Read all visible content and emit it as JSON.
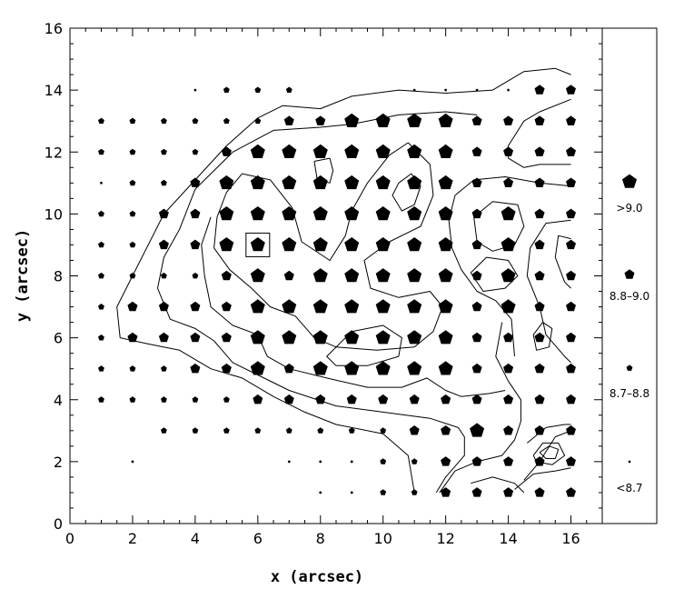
{
  "chart_data": {
    "type": "scatter",
    "xlabel": "x (arcsec)",
    "ylabel": "y (arcsec)",
    "xlim": [
      0,
      17
    ],
    "ylim": [
      0,
      16
    ],
    "xticks": [
      0,
      2,
      4,
      6,
      8,
      10,
      12,
      14,
      16
    ],
    "yticks": [
      0,
      2,
      4,
      6,
      8,
      10,
      12,
      14,
      16
    ],
    "grid": false,
    "legend": {
      "placement": "right panel",
      "entries": [
        {
          "label": ">9.0",
          "level": 3
        },
        {
          "label": "8.8–9.0",
          "level": 2
        },
        {
          "label": "8.7–8.8",
          "level": 1
        },
        {
          "label": "<8.7",
          "level": 0
        }
      ]
    },
    "highlight_box": {
      "x": 6,
      "y": 9
    },
    "rows": [
      {
        "y": 14,
        "x": [
          4,
          5,
          6,
          7,
          11,
          12,
          13,
          14,
          15,
          16
        ],
        "levels": [
          0,
          1,
          1,
          1,
          0,
          0,
          0,
          0,
          2,
          2
        ]
      },
      {
        "y": 13,
        "x": [
          1,
          2,
          3,
          4,
          5,
          6,
          7,
          8,
          9,
          10,
          11,
          12,
          13,
          14,
          15,
          16
        ],
        "levels": [
          1,
          1,
          1,
          1,
          1,
          1,
          2,
          2,
          3,
          3,
          3,
          3,
          2,
          2,
          2,
          2
        ]
      },
      {
        "y": 12,
        "x": [
          1,
          2,
          3,
          4,
          5,
          6,
          7,
          8,
          9,
          10,
          11,
          12,
          13,
          14,
          15,
          16
        ],
        "levels": [
          1,
          1,
          1,
          1,
          2,
          3,
          3,
          3,
          3,
          3,
          3,
          3,
          2,
          2,
          2,
          2
        ]
      },
      {
        "y": 11,
        "x": [
          1,
          2,
          3,
          4,
          5,
          6,
          7,
          8,
          9,
          10,
          11,
          12,
          13,
          14,
          15,
          16
        ],
        "levels": [
          0,
          1,
          1,
          2,
          3,
          3,
          3,
          3,
          3,
          3,
          3,
          3,
          2,
          2,
          2,
          2
        ]
      },
      {
        "y": 10,
        "x": [
          1,
          2,
          3,
          4,
          5,
          6,
          7,
          8,
          9,
          10,
          11,
          12,
          13,
          14,
          15,
          16
        ],
        "levels": [
          1,
          1,
          2,
          2,
          3,
          3,
          3,
          3,
          3,
          3,
          3,
          3,
          2,
          3,
          2,
          2
        ]
      },
      {
        "y": 9,
        "x": [
          1,
          2,
          3,
          4,
          5,
          6,
          7,
          8,
          9,
          10,
          11,
          12,
          13,
          14,
          15,
          16
        ],
        "levels": [
          1,
          1,
          2,
          2,
          3,
          3,
          3,
          3,
          3,
          3,
          3,
          3,
          2,
          3,
          2,
          2
        ]
      },
      {
        "y": 8,
        "x": [
          1,
          2,
          3,
          4,
          5,
          6,
          7,
          8,
          9,
          10,
          11,
          12,
          13,
          14,
          15,
          16
        ],
        "levels": [
          1,
          1,
          1,
          1,
          2,
          3,
          2,
          3,
          3,
          3,
          3,
          3,
          2,
          3,
          2,
          2
        ]
      },
      {
        "y": 7,
        "x": [
          1,
          2,
          3,
          4,
          5,
          6,
          7,
          8,
          9,
          10,
          11,
          12,
          13,
          14,
          15,
          16
        ],
        "levels": [
          1,
          2,
          2,
          2,
          2,
          3,
          3,
          3,
          3,
          3,
          3,
          3,
          2,
          3,
          2,
          2
        ]
      },
      {
        "y": 6,
        "x": [
          1,
          2,
          3,
          4,
          5,
          6,
          7,
          8,
          9,
          10,
          11,
          12,
          13,
          14,
          15,
          16
        ],
        "levels": [
          1,
          2,
          2,
          2,
          2,
          3,
          3,
          3,
          3,
          3,
          3,
          3,
          2,
          2,
          2,
          2
        ]
      },
      {
        "y": 5,
        "x": [
          1,
          2,
          3,
          4,
          5,
          6,
          7,
          8,
          9,
          10,
          11,
          12,
          13,
          14,
          15,
          16
        ],
        "levels": [
          1,
          1,
          1,
          2,
          2,
          3,
          2,
          3,
          3,
          3,
          3,
          3,
          2,
          2,
          2,
          2
        ]
      },
      {
        "y": 4,
        "x": [
          1,
          2,
          3,
          4,
          5,
          6,
          7,
          8,
          9,
          10,
          11,
          12,
          13,
          14,
          15,
          16
        ],
        "levels": [
          1,
          1,
          1,
          1,
          1,
          2,
          2,
          2,
          2,
          2,
          2,
          2,
          2,
          2,
          2,
          2
        ]
      },
      {
        "y": 3,
        "x": [
          3,
          4,
          5,
          6,
          7,
          8,
          9,
          10,
          11,
          12,
          13,
          14,
          15,
          16
        ],
        "levels": [
          1,
          1,
          1,
          1,
          1,
          1,
          1,
          1,
          2,
          2,
          3,
          2,
          2,
          2
        ]
      },
      {
        "y": 2,
        "x": [
          2,
          7,
          8,
          9,
          10,
          11,
          12,
          13,
          14,
          15,
          16
        ],
        "levels": [
          0,
          0,
          0,
          0,
          1,
          1,
          2,
          2,
          2,
          2,
          2
        ]
      },
      {
        "y": 1,
        "x": [
          8,
          9,
          10,
          11,
          12,
          13,
          14,
          15,
          16
        ],
        "levels": [
          0,
          0,
          1,
          1,
          2,
          2,
          2,
          2,
          2
        ]
      }
    ],
    "contours": [
      [
        [
          16,
          14.5
        ],
        [
          15.5,
          14.7
        ],
        [
          14.5,
          14.6
        ],
        [
          13.5,
          14
        ],
        [
          12,
          13.9
        ],
        [
          10.5,
          14
        ],
        [
          9,
          13.8
        ],
        [
          8,
          13.4
        ],
        [
          6.8,
          13.5
        ],
        [
          6,
          13.1
        ],
        [
          5,
          12.2
        ],
        [
          4,
          11.1
        ],
        [
          3,
          10
        ],
        [
          2,
          8
        ],
        [
          1.5,
          7
        ],
        [
          1.6,
          6
        ],
        [
          2.5,
          5.8
        ],
        [
          3.5,
          5.6
        ],
        [
          4.5,
          5
        ],
        [
          5.5,
          4.7
        ],
        [
          6.5,
          4.1
        ],
        [
          7.5,
          3.6
        ],
        [
          8.5,
          3.2
        ],
        [
          10,
          2.9
        ],
        [
          10.8,
          2.2
        ],
        [
          11,
          1
        ]
      ],
      [
        [
          16,
          13.7
        ],
        [
          15,
          13.3
        ],
        [
          14.5,
          13
        ],
        [
          14,
          12.2
        ],
        [
          14,
          11.8
        ],
        [
          14.5,
          11.5
        ],
        [
          15,
          11.6
        ],
        [
          16,
          11.6
        ]
      ],
      [
        [
          13,
          13.2
        ],
        [
          12,
          13.3
        ],
        [
          10.5,
          13.2
        ],
        [
          9,
          12.9
        ],
        [
          8,
          12.8
        ],
        [
          6.5,
          12.7
        ],
        [
          5.2,
          12
        ],
        [
          4,
          10.8
        ],
        [
          3.5,
          9.5
        ],
        [
          3,
          8.6
        ],
        [
          2.8,
          7.6
        ],
        [
          3.2,
          6.6
        ],
        [
          4,
          6.3
        ],
        [
          4.6,
          5.9
        ],
        [
          5.2,
          5.2
        ],
        [
          6,
          4.8
        ],
        [
          7,
          4.3
        ],
        [
          8.5,
          3.8
        ],
        [
          10,
          3.6
        ],
        [
          11.5,
          3.4
        ],
        [
          12.4,
          3.1
        ],
        [
          12.6,
          2.8
        ],
        [
          12.6,
          2.2
        ],
        [
          12,
          1.5
        ],
        [
          11.7,
          1
        ]
      ],
      [
        [
          16,
          10.9
        ],
        [
          15,
          11
        ],
        [
          13.9,
          11.2
        ],
        [
          12.9,
          11.1
        ],
        [
          12.3,
          10.6
        ],
        [
          12.1,
          9.8
        ],
        [
          12.2,
          8.9
        ],
        [
          12.5,
          8.2
        ],
        [
          13,
          7.5
        ],
        [
          13.6,
          7.2
        ],
        [
          14.1,
          6.6
        ],
        [
          14.2,
          5.4
        ]
      ],
      [
        [
          5.5,
          11.3
        ],
        [
          6.4,
          11.1
        ],
        [
          7.1,
          10.2
        ],
        [
          7.4,
          9.1
        ],
        [
          8.3,
          8.5
        ],
        [
          8.8,
          9.3
        ],
        [
          9,
          10.1
        ],
        [
          9.5,
          11
        ],
        [
          10.2,
          11.9
        ],
        [
          10.8,
          12.3
        ],
        [
          11.5,
          11.6
        ],
        [
          11.6,
          10.6
        ],
        [
          11.2,
          9.6
        ],
        [
          10.2,
          9.1
        ],
        [
          9.4,
          8.5
        ],
        [
          9.6,
          7.6
        ],
        [
          10.5,
          7.3
        ],
        [
          11.5,
          7.5
        ],
        [
          11.9,
          7
        ],
        [
          11.6,
          6.2
        ],
        [
          11,
          5.7
        ],
        [
          9.8,
          5.6
        ],
        [
          8.5,
          5.7
        ],
        [
          7.8,
          6
        ],
        [
          7.2,
          6.7
        ],
        [
          6.4,
          7
        ],
        [
          5.8,
          7.6
        ],
        [
          5.1,
          8.2
        ],
        [
          4.6,
          8.9
        ],
        [
          4.7,
          9.9
        ],
        [
          5,
          10.7
        ],
        [
          5.5,
          11.3
        ]
      ],
      [
        [
          7.8,
          11.7
        ],
        [
          8.3,
          11.8
        ],
        [
          8.4,
          11.4
        ],
        [
          8.3,
          11
        ],
        [
          7.9,
          11.1
        ],
        [
          7.8,
          11.7
        ]
      ],
      [
        [
          10.5,
          11
        ],
        [
          10.9,
          11.3
        ],
        [
          11.2,
          10.9
        ],
        [
          11,
          10.3
        ],
        [
          10.6,
          10.1
        ],
        [
          10.3,
          10.6
        ],
        [
          10.5,
          11
        ]
      ],
      [
        [
          12.9,
          9.9
        ],
        [
          13.5,
          10.4
        ],
        [
          14.3,
          10.3
        ],
        [
          14.5,
          9.6
        ],
        [
          14.2,
          9
        ],
        [
          13.5,
          8.8
        ],
        [
          13,
          9.1
        ],
        [
          12.9,
          9.9
        ]
      ],
      [
        [
          16,
          9.8
        ],
        [
          15.2,
          9.7
        ],
        [
          14.7,
          8.9
        ],
        [
          14.6,
          8
        ],
        [
          15,
          7
        ],
        [
          15.2,
          6.1
        ],
        [
          15.8,
          5.4
        ],
        [
          16,
          5.2
        ]
      ],
      [
        [
          16,
          9.2
        ],
        [
          15.6,
          9.3
        ],
        [
          15.5,
          8.6
        ],
        [
          15.8,
          7.8
        ],
        [
          16,
          7.6
        ]
      ],
      [
        [
          12.8,
          8.1
        ],
        [
          13.3,
          8.6
        ],
        [
          14,
          8.5
        ],
        [
          14.3,
          8
        ],
        [
          13.9,
          7.6
        ],
        [
          13.2,
          7.5
        ],
        [
          12.8,
          8.1
        ]
      ],
      [
        [
          4.5,
          9.9
        ],
        [
          4.2,
          9
        ],
        [
          4.3,
          8
        ],
        [
          4.5,
          7
        ],
        [
          5.2,
          6.4
        ],
        [
          6,
          6.1
        ],
        [
          6.3,
          5.4
        ],
        [
          7,
          5
        ],
        [
          8.2,
          4.7
        ],
        [
          9.5,
          4.4
        ],
        [
          10.6,
          4.4
        ],
        [
          11.4,
          4.7
        ],
        [
          12,
          4.3
        ],
        [
          12.5,
          4.1
        ],
        [
          13.4,
          4.2
        ],
        [
          13.9,
          4.3
        ]
      ],
      [
        [
          9,
          6.2
        ],
        [
          10,
          6.4
        ],
        [
          10.6,
          6
        ],
        [
          10.5,
          5.4
        ],
        [
          9.5,
          5.1
        ],
        [
          8.5,
          5.1
        ],
        [
          8.2,
          5.4
        ],
        [
          9,
          6.2
        ]
      ],
      [
        [
          15.1,
          6.5
        ],
        [
          15.4,
          6.3
        ],
        [
          15.3,
          5.7
        ],
        [
          14.9,
          5.6
        ],
        [
          14.8,
          6.1
        ],
        [
          15.1,
          6.5
        ]
      ],
      [
        [
          11.8,
          1
        ],
        [
          12.3,
          1.7
        ],
        [
          13,
          2
        ],
        [
          13.8,
          2.2
        ],
        [
          14.2,
          2.7
        ],
        [
          14.4,
          3.3
        ],
        [
          14.4,
          4
        ],
        [
          14,
          4.6
        ],
        [
          13.6,
          5.4
        ],
        [
          13.8,
          6.5
        ]
      ],
      [
        [
          12.8,
          1.3
        ],
        [
          13.5,
          1.5
        ],
        [
          14.2,
          1.3
        ],
        [
          14.5,
          1
        ]
      ],
      [
        [
          14.2,
          1.1
        ],
        [
          14.8,
          1.6
        ],
        [
          15.5,
          1.7
        ],
        [
          16,
          1.8
        ]
      ],
      [
        [
          14.5,
          1.4
        ],
        [
          15,
          2
        ],
        [
          15.5,
          2.8
        ],
        [
          16,
          3
        ]
      ],
      [
        [
          14.6,
          2.6
        ],
        [
          15.2,
          3.1
        ],
        [
          15.8,
          3.2
        ],
        [
          16,
          3.2
        ]
      ],
      [
        [
          14.8,
          2.2
        ],
        [
          15.1,
          2.6
        ],
        [
          15.6,
          2.6
        ],
        [
          15.8,
          2.2
        ],
        [
          15.4,
          1.9
        ],
        [
          14.9,
          2
        ],
        [
          14.8,
          2.2
        ]
      ],
      [
        [
          15,
          2.3
        ],
        [
          15.3,
          2.5
        ],
        [
          15.6,
          2.4
        ],
        [
          15.5,
          2.1
        ],
        [
          15.2,
          2.1
        ],
        [
          15,
          2.3
        ]
      ]
    ]
  }
}
